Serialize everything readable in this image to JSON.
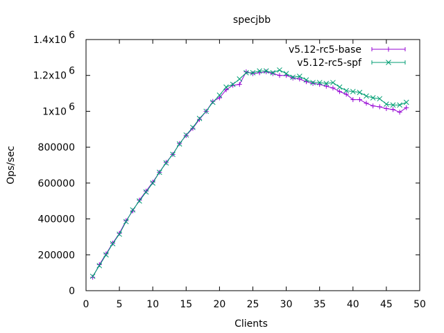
{
  "chart_data": {
    "type": "line",
    "title": "specjbb",
    "xlabel": "Clients",
    "ylabel": "Ops/sec",
    "xlim": [
      0,
      50
    ],
    "ylim": [
      0,
      1400000
    ],
    "grid": false,
    "legend_position": "top-right",
    "x_ticks": [
      {
        "value": 0,
        "label": "0"
      },
      {
        "value": 5,
        "label": "5"
      },
      {
        "value": 10,
        "label": "10"
      },
      {
        "value": 15,
        "label": "15"
      },
      {
        "value": 20,
        "label": "20"
      },
      {
        "value": 25,
        "label": "25"
      },
      {
        "value": 30,
        "label": "30"
      },
      {
        "value": 35,
        "label": "35"
      },
      {
        "value": 40,
        "label": "40"
      },
      {
        "value": 45,
        "label": "45"
      },
      {
        "value": 50,
        "label": "50"
      }
    ],
    "y_ticks": [
      {
        "value": 0,
        "label": "0",
        "exp": ""
      },
      {
        "value": 200000,
        "label": "200000",
        "exp": ""
      },
      {
        "value": 400000,
        "label": "400000",
        "exp": ""
      },
      {
        "value": 600000,
        "label": "600000",
        "exp": ""
      },
      {
        "value": 800000,
        "label": "800000",
        "exp": ""
      },
      {
        "value": 1000000,
        "label": "1x10",
        "exp": "6"
      },
      {
        "value": 1200000,
        "label": "1.2x10",
        "exp": "6"
      },
      {
        "value": 1400000,
        "label": "1.4x10",
        "exp": "6"
      }
    ],
    "x": [
      1,
      2,
      3,
      4,
      5,
      6,
      7,
      8,
      9,
      10,
      11,
      12,
      13,
      14,
      15,
      16,
      17,
      18,
      19,
      20,
      21,
      22,
      23,
      24,
      25,
      26,
      27,
      28,
      29,
      30,
      31,
      32,
      33,
      34,
      35,
      36,
      37,
      38,
      39,
      40,
      41,
      42,
      43,
      44,
      45,
      46,
      47,
      48
    ],
    "series": [
      {
        "name": "v5.12-rc5-base",
        "color": "#9400d3",
        "marker": "plus",
        "values": [
          75000,
          145000,
          205000,
          265000,
          320000,
          390000,
          445000,
          505000,
          555000,
          605000,
          660000,
          715000,
          760000,
          820000,
          865000,
          905000,
          955000,
          1000000,
          1055000,
          1075000,
          1120000,
          1145000,
          1150000,
          1220000,
          1210000,
          1215000,
          1220000,
          1210000,
          1200000,
          1200000,
          1185000,
          1180000,
          1165000,
          1155000,
          1150000,
          1140000,
          1130000,
          1110000,
          1095000,
          1065000,
          1065000,
          1045000,
          1030000,
          1025000,
          1015000,
          1010000,
          995000,
          1020000
        ]
      },
      {
        "name": "v5.12-rc5-spf",
        "color": "#009e73",
        "marker": "cross",
        "values": [
          80000,
          140000,
          200000,
          262000,
          315000,
          385000,
          450000,
          500000,
          550000,
          600000,
          660000,
          712000,
          760000,
          818000,
          868000,
          910000,
          960000,
          1000000,
          1050000,
          1090000,
          1135000,
          1150000,
          1180000,
          1215000,
          1215000,
          1225000,
          1225000,
          1215000,
          1230000,
          1210000,
          1190000,
          1195000,
          1175000,
          1160000,
          1160000,
          1155000,
          1160000,
          1135000,
          1115000,
          1110000,
          1105000,
          1085000,
          1075000,
          1070000,
          1040000,
          1035000,
          1035000,
          1050000
        ]
      }
    ]
  }
}
